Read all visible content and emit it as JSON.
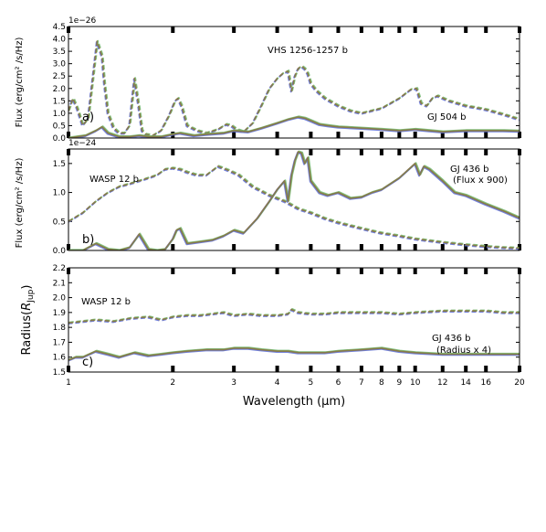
{
  "figure": {
    "xlabel": "Wavelength (μm)",
    "x_ticks": [
      1,
      2,
      3,
      4,
      5,
      6,
      7,
      8,
      9,
      10,
      12,
      14,
      16,
      20
    ],
    "x_tick_labels": [
      "1",
      "2",
      "3",
      "4",
      "5",
      "6",
      "7",
      "8",
      "9",
      "10",
      "12",
      "14",
      "16",
      "20"
    ],
    "series_colors": [
      "#e8706a",
      "#6fb86f",
      "#5a6fd8"
    ],
    "overlap_color": "#8a7a3e"
  },
  "chart_data": [
    {
      "type": "line",
      "panel_letter": "a)",
      "ylabel": "Flux (erg/cm² /s/Hz)",
      "multiplier": "1e−26",
      "x_scale": "log",
      "xlim": [
        1,
        20
      ],
      "ylim": [
        0,
        4.5
      ],
      "y_ticks": [
        0.0,
        0.5,
        1.0,
        1.5,
        2.0,
        2.5,
        3.0,
        3.5,
        4.0,
        4.5
      ],
      "y_tick_labels": [
        "0.0",
        "0.5",
        "1.0",
        "1.5",
        "2.0",
        "2.5",
        "3.0",
        "3.5",
        "4.0",
        "4.5"
      ],
      "annotations": [
        "VHS 1256-1257 b",
        "GJ 504 b"
      ],
      "series": [
        {
          "style": "dashed",
          "x": [
            1.0,
            1.03,
            1.06,
            1.1,
            1.14,
            1.18,
            1.21,
            1.25,
            1.27,
            1.3,
            1.35,
            1.4,
            1.45,
            1.5,
            1.55,
            1.59,
            1.63,
            1.67,
            1.75,
            1.85,
            1.95,
            2.03,
            2.07,
            2.12,
            2.2,
            2.35,
            2.5,
            2.7,
            2.85,
            2.95,
            3.05,
            3.2,
            3.4,
            3.6,
            3.8,
            4.0,
            4.15,
            4.3,
            4.4,
            4.5,
            4.6,
            4.7,
            4.8,
            4.9,
            5.0,
            5.2,
            5.5,
            6.0,
            6.5,
            7.0,
            8.0,
            9.0,
            9.7,
            10.1,
            10.4,
            10.8,
            11.2,
            11.6,
            12.5,
            14.0,
            16.0,
            18.0,
            20.0
          ],
          "y": [
            1.1,
            1.6,
            1.2,
            0.5,
            0.8,
            2.6,
            3.9,
            3.3,
            2.2,
            1.0,
            0.4,
            0.2,
            0.2,
            0.5,
            2.4,
            1.4,
            0.3,
            0.15,
            0.1,
            0.3,
            0.9,
            1.5,
            1.6,
            1.3,
            0.5,
            0.3,
            0.2,
            0.35,
            0.55,
            0.5,
            0.35,
            0.25,
            0.6,
            1.3,
            2.0,
            2.4,
            2.6,
            2.7,
            1.9,
            2.5,
            2.8,
            2.9,
            2.8,
            2.6,
            2.2,
            1.9,
            1.6,
            1.3,
            1.1,
            1.0,
            1.2,
            1.6,
            1.95,
            2.0,
            1.4,
            1.3,
            1.6,
            1.7,
            1.5,
            1.3,
            1.15,
            0.95,
            0.75
          ]
        },
        {
          "style": "solid",
          "x": [
            1.0,
            1.06,
            1.12,
            1.2,
            1.25,
            1.3,
            1.4,
            1.5,
            1.6,
            1.7,
            1.85,
            2.0,
            2.1,
            2.3,
            2.5,
            2.8,
            3.0,
            3.3,
            3.6,
            4.0,
            4.3,
            4.6,
            4.8,
            5.0,
            5.3,
            5.6,
            6.0,
            7.0,
            8.0,
            9.0,
            10.0,
            11.0,
            12.0,
            14.0,
            16.0,
            18.0,
            20.0
          ],
          "y": [
            0.0,
            0.05,
            0.1,
            0.3,
            0.45,
            0.2,
            0.05,
            0.05,
            0.1,
            0.05,
            0.05,
            0.15,
            0.2,
            0.1,
            0.15,
            0.2,
            0.3,
            0.25,
            0.4,
            0.6,
            0.75,
            0.85,
            0.8,
            0.7,
            0.55,
            0.5,
            0.45,
            0.4,
            0.35,
            0.3,
            0.35,
            0.3,
            0.25,
            0.3,
            0.3,
            0.3,
            0.28
          ]
        }
      ]
    },
    {
      "type": "line",
      "panel_letter": "b)",
      "ylabel": "Flux (erg/cm² /s/Hz)",
      "multiplier": "1e−24",
      "x_scale": "log",
      "xlim": [
        1,
        20
      ],
      "ylim": [
        0,
        1.75
      ],
      "y_ticks": [
        0.0,
        0.5,
        1.0,
        1.5
      ],
      "y_tick_labels": [
        "0.0",
        "0.5",
        "1.0",
        "1.5"
      ],
      "annotations": [
        "WASP 12 b",
        "GJ 436 b",
        "(Flux x 900)"
      ],
      "series": [
        {
          "style": "dashed",
          "x": [
            1.0,
            1.1,
            1.2,
            1.3,
            1.4,
            1.5,
            1.6,
            1.7,
            1.8,
            1.9,
            2.0,
            2.1,
            2.2,
            2.35,
            2.5,
            2.7,
            2.9,
            3.1,
            3.4,
            3.8,
            4.2,
            4.6,
            5.0,
            5.5,
            6.0,
            7.0,
            8.0,
            9.0,
            10.0,
            12.0,
            14.0,
            16.0,
            18.0,
            20.0
          ],
          "y": [
            0.5,
            0.65,
            0.85,
            1.0,
            1.1,
            1.15,
            1.2,
            1.25,
            1.3,
            1.4,
            1.42,
            1.4,
            1.35,
            1.3,
            1.3,
            1.45,
            1.38,
            1.3,
            1.1,
            0.95,
            0.85,
            0.72,
            0.65,
            0.55,
            0.48,
            0.38,
            0.3,
            0.25,
            0.2,
            0.14,
            0.1,
            0.07,
            0.05,
            0.04
          ]
        },
        {
          "style": "solid",
          "x": [
            1.0,
            1.1,
            1.2,
            1.3,
            1.4,
            1.5,
            1.6,
            1.7,
            1.8,
            1.9,
            2.0,
            2.05,
            2.1,
            2.2,
            2.4,
            2.6,
            2.8,
            3.0,
            3.2,
            3.5,
            3.8,
            4.0,
            4.2,
            4.3,
            4.4,
            4.5,
            4.6,
            4.7,
            4.8,
            4.9,
            5.0,
            5.3,
            5.6,
            6.0,
            6.5,
            7.0,
            7.5,
            8.0,
            9.0,
            10.0,
            10.3,
            10.6,
            11.0,
            12.0,
            13.0,
            14.0,
            16.0,
            18.0,
            20.0
          ],
          "y": [
            0.0,
            0.0,
            0.12,
            0.02,
            0.0,
            0.05,
            0.28,
            0.02,
            0.0,
            0.02,
            0.2,
            0.35,
            0.38,
            0.12,
            0.15,
            0.18,
            0.25,
            0.35,
            0.3,
            0.55,
            0.85,
            1.05,
            1.2,
            0.85,
            1.3,
            1.55,
            1.7,
            1.68,
            1.5,
            1.6,
            1.2,
            1.0,
            0.95,
            1.0,
            0.9,
            0.92,
            1.0,
            1.05,
            1.25,
            1.5,
            1.3,
            1.45,
            1.4,
            1.2,
            1.0,
            0.95,
            0.8,
            0.68,
            0.56
          ]
        }
      ]
    },
    {
      "type": "line",
      "panel_letter": "c)",
      "ylabel": "Radius(R_Jup)",
      "x_scale": "log",
      "xlim": [
        1,
        20
      ],
      "ylim": [
        1.5,
        2.2
      ],
      "y_ticks": [
        1.5,
        1.6,
        1.7,
        1.8,
        1.9,
        2.0,
        2.1,
        2.2
      ],
      "y_tick_labels": [
        "1.5",
        "1.6",
        "1.7",
        "1.8",
        "1.9",
        "2.0",
        "2.1",
        "2.2"
      ],
      "annotations": [
        "WASP 12 b",
        "GJ 436 b",
        "(Radius x 4)"
      ],
      "series": [
        {
          "style": "dashed",
          "x": [
            1.0,
            1.1,
            1.2,
            1.35,
            1.5,
            1.7,
            1.85,
            2.0,
            2.2,
            2.4,
            2.6,
            2.8,
            3.0,
            3.3,
            3.6,
            4.0,
            4.3,
            4.4,
            4.6,
            5.0,
            5.5,
            6.0,
            7.0,
            8.0,
            9.0,
            10.0,
            12.0,
            14.0,
            16.0,
            18.0,
            20.0
          ],
          "y": [
            1.83,
            1.84,
            1.85,
            1.84,
            1.86,
            1.87,
            1.85,
            1.87,
            1.88,
            1.88,
            1.89,
            1.9,
            1.88,
            1.89,
            1.88,
            1.88,
            1.89,
            1.92,
            1.9,
            1.89,
            1.89,
            1.9,
            1.9,
            1.9,
            1.89,
            1.9,
            1.91,
            1.91,
            1.91,
            1.9,
            1.9
          ]
        },
        {
          "style": "solid",
          "x": [
            1.0,
            1.05,
            1.1,
            1.2,
            1.3,
            1.4,
            1.55,
            1.7,
            1.85,
            2.0,
            2.2,
            2.5,
            2.8,
            3.0,
            3.3,
            3.6,
            4.0,
            4.3,
            4.6,
            5.0,
            5.5,
            6.0,
            7.0,
            8.0,
            9.0,
            10.0,
            12.0,
            14.0,
            16.0,
            18.0,
            20.0
          ],
          "y": [
            1.58,
            1.6,
            1.6,
            1.64,
            1.62,
            1.6,
            1.63,
            1.61,
            1.62,
            1.63,
            1.64,
            1.65,
            1.65,
            1.66,
            1.66,
            1.65,
            1.64,
            1.64,
            1.63,
            1.63,
            1.63,
            1.64,
            1.65,
            1.66,
            1.64,
            1.63,
            1.62,
            1.62,
            1.62,
            1.62,
            1.62
          ]
        }
      ]
    }
  ]
}
